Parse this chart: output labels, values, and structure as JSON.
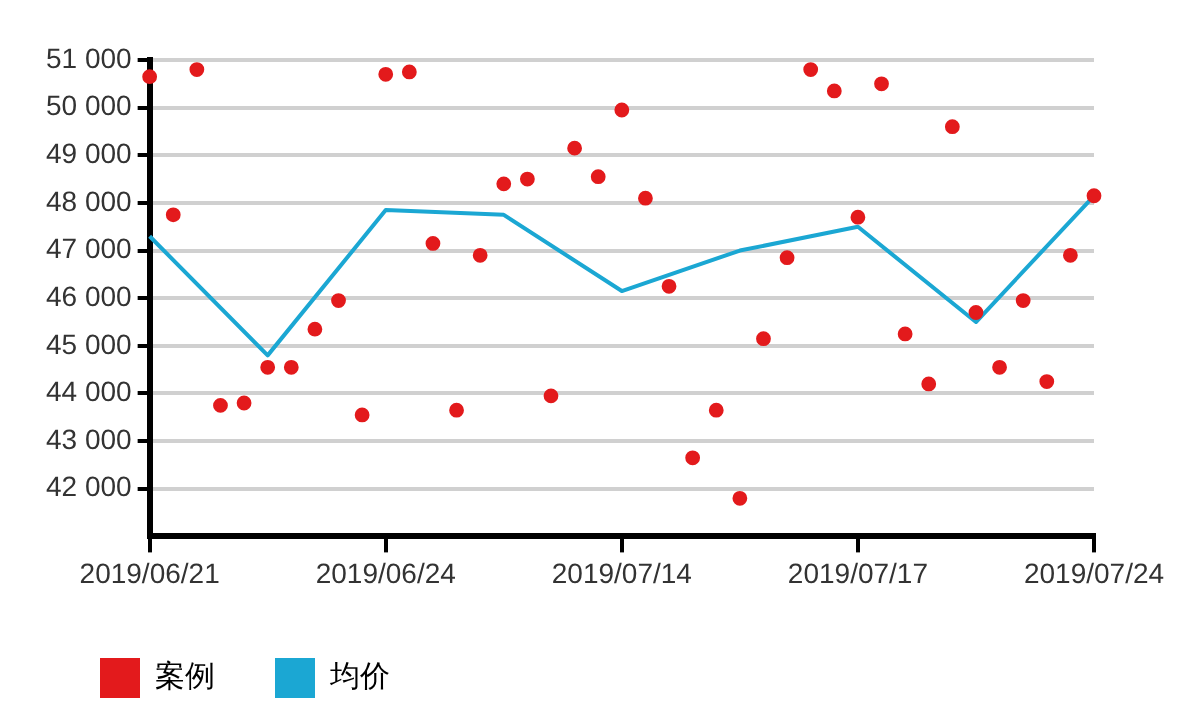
{
  "chart_data": {
    "type": "scatter",
    "categories": [
      "2019/06/21",
      null,
      null,
      null,
      null,
      null,
      null,
      null,
      null,
      null,
      "2019/06/24",
      null,
      null,
      null,
      null,
      null,
      null,
      null,
      null,
      null,
      "2019/07/14",
      null,
      null,
      null,
      null,
      null,
      null,
      null,
      null,
      null,
      "2019/07/17",
      null,
      null,
      null,
      null,
      null,
      null,
      null,
      null,
      null,
      "2019/07/24"
    ],
    "ylim": [
      41000,
      51000
    ],
    "yticks": [
      {
        "value": 42000,
        "label": "42 000"
      },
      {
        "value": 43000,
        "label": "43 000"
      },
      {
        "value": 44000,
        "label": "44 000"
      },
      {
        "value": 45000,
        "label": "45 000"
      },
      {
        "value": 46000,
        "label": "46 000"
      },
      {
        "value": 47000,
        "label": "47 000"
      },
      {
        "value": 48000,
        "label": "48 000"
      },
      {
        "value": 49000,
        "label": "49 000"
      },
      {
        "value": 50000,
        "label": "50 000"
      },
      {
        "value": 51000,
        "label": "51 000"
      }
    ],
    "grid": "y",
    "legend": "bottom",
    "marker": "circle",
    "series": [
      {
        "name": "案例",
        "color": "#e31a1c",
        "values": [
          50650,
          47750,
          50800,
          43750,
          43800,
          44550,
          44550,
          45350,
          45950,
          43550,
          50700,
          50750,
          47150,
          43650,
          46900,
          48400,
          48500,
          43950,
          49150,
          48550,
          49950,
          48100,
          46250,
          42650,
          43650,
          41800,
          45150,
          46850,
          50800,
          50350,
          47700,
          50500,
          45250,
          44200,
          49600,
          45700,
          44550,
          45950,
          44250,
          46900,
          48150
        ]
      },
      {
        "name": "均价",
        "type": "line",
        "color": "#1ba7d3",
        "marker": "none",
        "line_style": "solid",
        "values": [
          47300,
          null,
          null,
          null,
          null,
          44800,
          null,
          null,
          null,
          null,
          47850,
          null,
          null,
          null,
          null,
          47750,
          null,
          null,
          null,
          null,
          46150,
          null,
          null,
          null,
          null,
          47000,
          null,
          null,
          null,
          null,
          47500,
          null,
          null,
          null,
          null,
          45500,
          null,
          null,
          null,
          null,
          48150
        ]
      }
    ]
  }
}
